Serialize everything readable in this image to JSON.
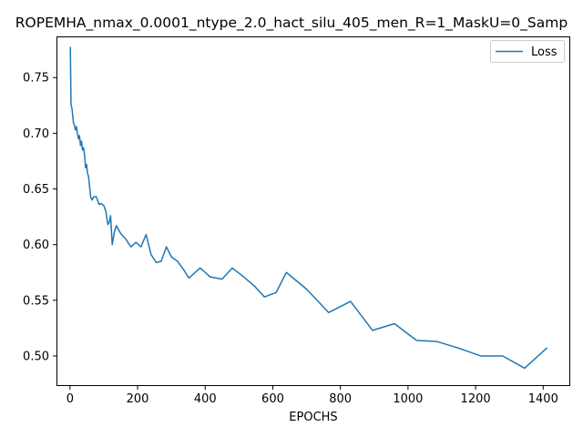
{
  "chart_data": {
    "type": "line",
    "title": "ROPEMHA_nmax_0.0001_ntype_2.0_hact_silu_405_men_R=1_MaskU=0_Samp",
    "xlabel": "EPOCHS",
    "ylabel": "",
    "xlim": [
      -40,
      1480
    ],
    "ylim": [
      0.473,
      0.787
    ],
    "xticks": [
      0,
      200,
      400,
      600,
      800,
      1000,
      1200,
      1400
    ],
    "yticks": [
      0.5,
      0.55,
      0.6,
      0.65,
      0.7,
      0.75
    ],
    "grid": false,
    "legend_position": "top-right",
    "series": [
      {
        "name": "Loss",
        "color": "#1f77b4",
        "x": [
          1,
          3,
          6,
          10,
          13,
          16,
          19,
          22,
          25,
          28,
          31,
          34,
          37,
          40,
          43,
          46,
          49,
          52,
          55,
          58,
          61,
          65,
          70,
          78,
          86,
          92,
          100,
          106,
          112,
          116,
          120,
          125,
          131,
          137,
          150,
          165,
          180,
          195,
          210,
          225,
          240,
          255,
          270,
          285,
          300,
          318,
          335,
          352,
          385,
          415,
          450,
          480,
          510,
          545,
          575,
          610,
          640,
          700,
          765,
          830,
          895,
          960,
          1025,
          1085,
          1150,
          1215,
          1280,
          1345,
          1410
        ],
        "values": [
          0.777,
          0.726,
          0.722,
          0.71,
          0.707,
          0.703,
          0.706,
          0.7,
          0.695,
          0.698,
          0.689,
          0.693,
          0.685,
          0.687,
          0.681,
          0.669,
          0.672,
          0.664,
          0.661,
          0.652,
          0.643,
          0.64,
          0.643,
          0.643,
          0.636,
          0.637,
          0.635,
          0.63,
          0.618,
          0.62,
          0.626,
          0.6,
          0.611,
          0.617,
          0.61,
          0.605,
          0.598,
          0.602,
          0.598,
          0.609,
          0.591,
          0.584,
          0.585,
          0.598,
          0.589,
          0.585,
          0.578,
          0.57,
          0.579,
          0.571,
          0.569,
          0.579,
          0.572,
          0.563,
          0.553,
          0.557,
          0.575,
          0.56,
          0.539,
          0.549,
          0.523,
          0.529,
          0.514,
          0.513,
          0.507,
          0.5,
          0.5,
          0.489,
          0.507
        ]
      }
    ]
  }
}
